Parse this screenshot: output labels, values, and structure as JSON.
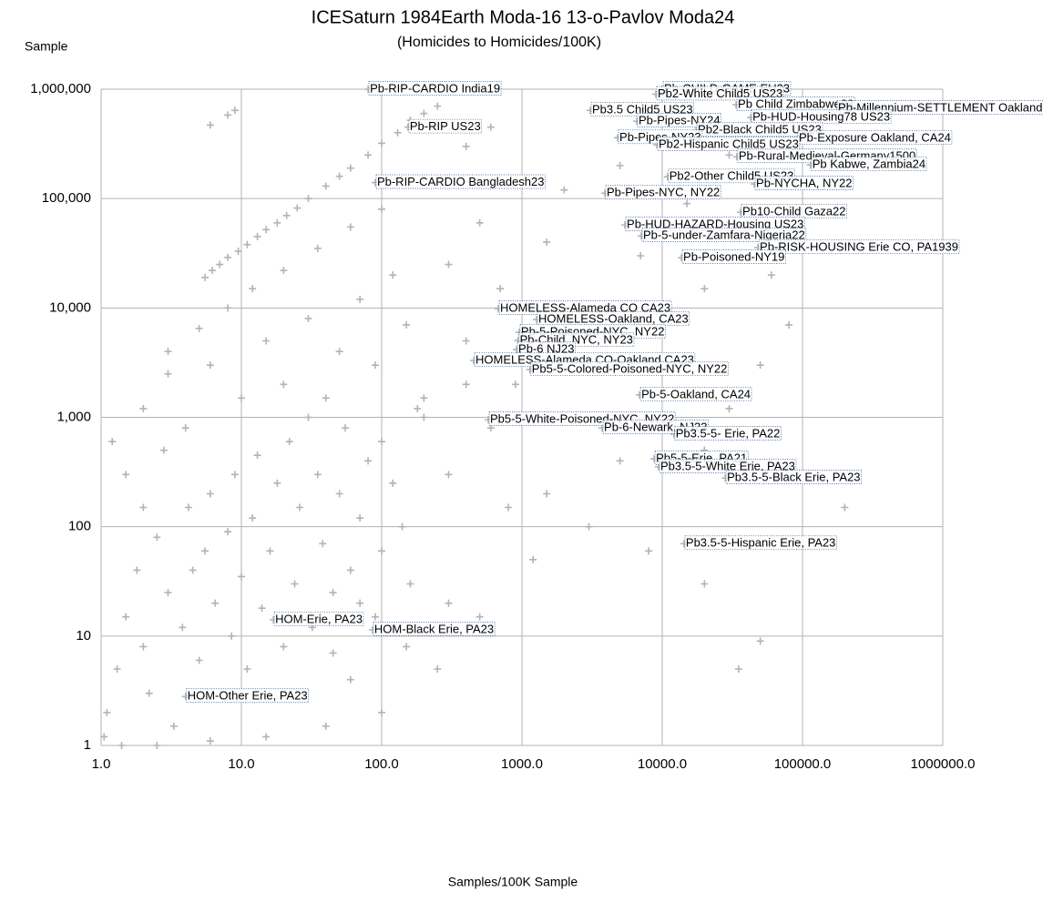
{
  "chart_data": {
    "type": "scatter",
    "title": "ICESaturn 1984Earth Moda-16 13-o-Pavlov Moda24",
    "subtitle": "(Homicides to Homicides/100K)",
    "y_label": "Sample",
    "x_label": "Samples/100K Sample",
    "x_log": true,
    "y_log": true,
    "grid": true,
    "color": "#b3b3b3",
    "xlim": [
      1,
      1000000
    ],
    "ylim": [
      1,
      1000000
    ],
    "xticks": [
      {
        "value": 1,
        "label": "1.0"
      },
      {
        "value": 10,
        "label": "10.0"
      },
      {
        "value": 100,
        "label": "100.0"
      },
      {
        "value": 1000,
        "label": "1000.0"
      },
      {
        "value": 10000,
        "label": "10000.0"
      },
      {
        "value": 100000,
        "label": "100000.0"
      },
      {
        "value": 1000000,
        "label": "1000000.0"
      }
    ],
    "yticks": [
      1,
      10,
      100,
      {
        "value": 1000,
        "label": "1,000"
      },
      {
        "value": 10000,
        "label": "10,000"
      },
      {
        "value": 100000,
        "label": "100,000"
      },
      {
        "value": 1000000,
        "label": "1,000,000"
      }
    ],
    "x": [
      5.5,
      6.2,
      7,
      8,
      9.5,
      11,
      13,
      15,
      18,
      21,
      25,
      30,
      40,
      50,
      60,
      80,
      100,
      130,
      160,
      200,
      250,
      6,
      8,
      9,
      3,
      5,
      8,
      12,
      20,
      35,
      60,
      100,
      200,
      400,
      600,
      2,
      3,
      4,
      6,
      10,
      15,
      20,
      30,
      50,
      70,
      90,
      120,
      150,
      200,
      300,
      400,
      500,
      700,
      900,
      1500,
      2000,
      3000,
      5000,
      7000,
      10000,
      15000,
      20000,
      30000,
      40000,
      60000,
      80000,
      50000,
      30000,
      20000,
      200000,
      8000,
      20000,
      50000,
      35000,
      1500,
      3000,
      5000,
      800,
      1200,
      600,
      300,
      200,
      100,
      400,
      1.1,
      1.3,
      1.5,
      1.8,
      2,
      2.2,
      2.5,
      3,
      3.3,
      3.8,
      4.2,
      4.5,
      5,
      5.5,
      6,
      6.5,
      7,
      8,
      8.5,
      9,
      10,
      11,
      12,
      13,
      14,
      16,
      18,
      20,
      22,
      24,
      26,
      30,
      32,
      35,
      38,
      40,
      45,
      50,
      55,
      60,
      70,
      80,
      90,
      100,
      120,
      140,
      160,
      180,
      1.2,
      1.5,
      2,
      2.8,
      1.05,
      1.4,
      2.5,
      6,
      15,
      40,
      25,
      60,
      100,
      150,
      70,
      45,
      300,
      500,
      250
    ],
    "values": [
      19000,
      22000,
      25000,
      29000,
      33000,
      38000,
      45000,
      52000,
      60000,
      70000,
      82000,
      100000,
      130000,
      160000,
      190000,
      250000,
      320000,
      400000,
      520000,
      600000,
      700000,
      470000,
      580000,
      640000,
      4000,
      6500,
      10000,
      15000,
      22000,
      35000,
      55000,
      80000,
      150000,
      300000,
      450000,
      1200,
      2500,
      800,
      3000,
      1500,
      5000,
      2000,
      8000,
      4000,
      12000,
      3000,
      20000,
      7000,
      1500,
      25000,
      5000,
      60000,
      15000,
      2000,
      40000,
      120000,
      8000,
      200000,
      30000,
      500000,
      90000,
      15000,
      250000,
      60000,
      20000,
      7000,
      3000,
      1200,
      500,
      150,
      60,
      30,
      9,
      5,
      200,
      100,
      400,
      150,
      50,
      800,
      300,
      1000,
      600,
      2000,
      2,
      5,
      15,
      40,
      8,
      3,
      80,
      25,
      1.5,
      12,
      150,
      40,
      6,
      60,
      200,
      20,
      3,
      90,
      10,
      300,
      35,
      5,
      120,
      450,
      18,
      60,
      250,
      8,
      600,
      30,
      150,
      1000,
      12,
      300,
      70,
      1500,
      25,
      200,
      800,
      40,
      120,
      400,
      15,
      60,
      250,
      100,
      30,
      1200,
      600,
      300,
      150,
      500,
      1.2,
      1,
      1,
      1.1,
      1.2,
      1.5,
      3,
      4,
      2,
      8,
      20,
      7,
      20,
      15,
      5
    ],
    "annotations": [
      {
        "label": "Pb-RIP-CARDIO India19",
        "x": 80,
        "y": 1000000
      },
      {
        "label": "Pb-RIP US23",
        "x": 154,
        "y": 450000
      },
      {
        "label": "Pb-RIP-CARDIO Bangladesh23",
        "x": 90,
        "y": 140000
      },
      {
        "label": "Pb-CHILD-GAME EU23",
        "x": 10000,
        "y": 1000000
      },
      {
        "label": "Pb2-White Child5 US23",
        "x": 9000,
        "y": 900000
      },
      {
        "label": "Pb Child Zimbabwe23",
        "x": 33600,
        "y": 720000
      },
      {
        "label": "Pb-Millennium-SETTLEMENT Oakland,",
        "x": 174000,
        "y": 667000
      },
      {
        "label": "Pb3.5 Child5 US23",
        "x": 3070,
        "y": 641000
      },
      {
        "label": "Pb-HUD-Housing78 US23",
        "x": 42700,
        "y": 550000
      },
      {
        "label": "Pb-Pipes-NY24",
        "x": 6580,
        "y": 510000
      },
      {
        "label": "Pb2-Black Child5 US23",
        "x": 17400,
        "y": 420000
      },
      {
        "label": "Pb-Pipes-NY23",
        "x": 4810,
        "y": 360000
      },
      {
        "label": "Pb-Exposure Oakland, CA24",
        "x": 91400,
        "y": 354000
      },
      {
        "label": "Pb2-Hispanic Child5 US23",
        "x": 9140,
        "y": 310000
      },
      {
        "label": "Pb-Rural-Medieval-Germany1500",
        "x": 34000,
        "y": 241000
      },
      {
        "label": "Pb Kabwe, Zambia24",
        "x": 114000,
        "y": 203000
      },
      {
        "label": "Pb2-Other Child5 US23",
        "x": 10900,
        "y": 158000
      },
      {
        "label": "Pb-NYCHA, NY22",
        "x": 45300,
        "y": 136000
      },
      {
        "label": "Pb-Pipes-NYC, NY22",
        "x": 3900,
        "y": 112000
      },
      {
        "label": "Pb10-Child Gaza22",
        "x": 36200,
        "y": 75000
      },
      {
        "label": "Pb-HUD-HAZARD-Housing US23",
        "x": 5420,
        "y": 57400
      },
      {
        "label": "Pb-5-under-Zamfara-Nigeria22",
        "x": 7090,
        "y": 45600
      },
      {
        "label": "Pb-RISK-HOUSING Erie CO, PA1939",
        "x": 48100,
        "y": 35600
      },
      {
        "label": "Pb-Poisoned-NY19",
        "x": 13700,
        "y": 28800
      },
      {
        "label": "HOMELESS-Alameda CO CA23",
        "x": 678,
        "y": 9850
      },
      {
        "label": "HOMELESS-Oakland, CA23",
        "x": 1270,
        "y": 7830
      },
      {
        "label": "Pb-5-Poisoned-NYC, NY22",
        "x": 955,
        "y": 5990
      },
      {
        "label": "Pb-Child, NYC, NY23",
        "x": 937,
        "y": 5040
      },
      {
        "label": "Pb-6 NJ23",
        "x": 915,
        "y": 4160
      },
      {
        "label": "HOMELESS-Alameda CO-Oakland CA23",
        "x": 453,
        "y": 3300
      },
      {
        "label": "Pb5-5-Colored-Poisoned-NYC, NY22",
        "x": 1140,
        "y": 2730
      },
      {
        "label": "Pb-5-Oakland, CA24",
        "x": 6890,
        "y": 1600
      },
      {
        "label": "Pb5-5-White-Poisoned-NYC, NY22",
        "x": 575,
        "y": 951
      },
      {
        "label": "Pb-6-Newark, NJ23",
        "x": 3730,
        "y": 800
      },
      {
        "label": "Pb3.5-5- Erie, PA22",
        "x": 12100,
        "y": 700
      },
      {
        "label": "Pb5-5-Erie, PA21",
        "x": 8750,
        "y": 418
      },
      {
        "label": "Pb3.5-5-White Erie, PA23",
        "x": 9420,
        "y": 352
      },
      {
        "label": "Pb3.5-5-Black Erie, PA23",
        "x": 28100,
        "y": 279
      },
      {
        "label": "Pb3.5-5-Hispanic Erie, PA23",
        "x": 14300,
        "y": 70
      },
      {
        "label": "HOM-Erie, PA23",
        "x": 16.9,
        "y": 14.1
      },
      {
        "label": "HOM-Black Erie, PA23",
        "x": 86,
        "y": 11.4
      },
      {
        "label": "HOM-Other Erie, PA23",
        "x": 4,
        "y": 2.8
      }
    ]
  }
}
